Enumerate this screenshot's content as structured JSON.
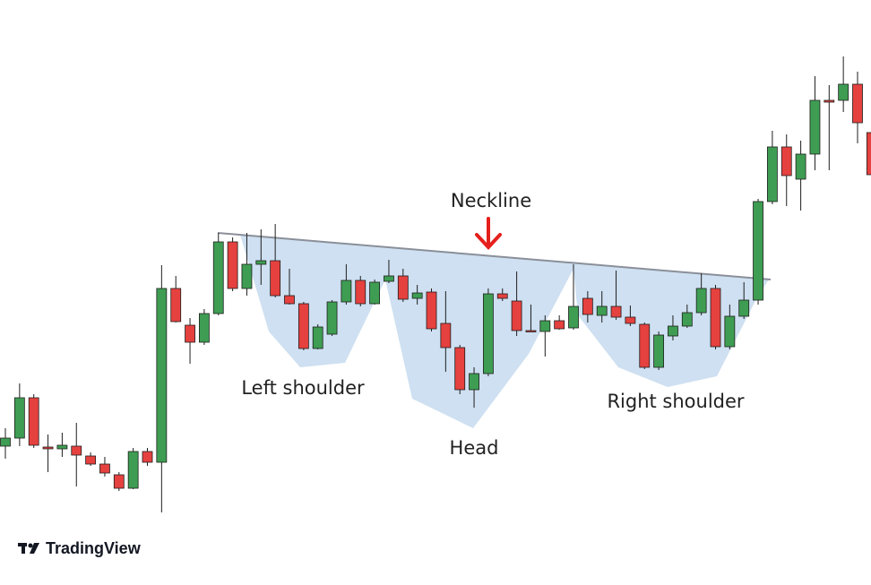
{
  "chart_data": {
    "type": "candlestick",
    "open": [
      155,
      164,
      209,
      154,
      152,
      155,
      144,
      135,
      123,
      108,
      149,
      137,
      331,
      290,
      271,
      303,
      383,
      331,
      358,
      362,
      323,
      314,
      264,
      280,
      316,
      340,
      314,
      339,
      345,
      320,
      327,
      292,
      265,
      218,
      236,
      325,
      317,
      284,
      283,
      295,
      287,
      320,
      301,
      311,
      299,
      291,
      243,
      278,
      289,
      304,
      331,
      266,
      300,
      318,
      428,
      489,
      453,
      481,
      541,
      541,
      559,
      505
    ],
    "high": [
      175,
      225,
      213,
      168,
      170,
      181,
      148,
      143,
      126,
      153,
      153,
      357,
      345,
      298,
      308,
      393,
      388,
      393,
      397,
      403,
      353,
      316,
      291,
      318,
      358,
      345,
      341,
      363,
      353,
      335,
      331,
      328,
      268,
      243,
      331,
      331,
      350,
      313,
      301,
      301,
      358,
      328,
      328,
      351,
      312,
      293,
      283,
      301,
      313,
      348,
      335,
      313,
      338,
      431,
      507,
      503,
      496,
      568,
      558,
      590,
      573,
      513
    ],
    "low": [
      141,
      155,
      153,
      126,
      143,
      110,
      133,
      121,
      105,
      107,
      133,
      81,
      293,
      247,
      268,
      301,
      328,
      323,
      335,
      321,
      313,
      262,
      263,
      278,
      313,
      311,
      313,
      337,
      316,
      313,
      283,
      238,
      213,
      198,
      233,
      317,
      278,
      283,
      255,
      285,
      285,
      293,
      293,
      296,
      289,
      241,
      240,
      273,
      287,
      301,
      263,
      263,
      297,
      313,
      425,
      423,
      418,
      463,
      463,
      528,
      493,
      443
    ],
    "close": [
      164,
      209,
      156,
      152,
      156,
      145,
      135,
      125,
      108,
      149,
      137,
      331,
      294,
      271,
      303,
      383,
      331,
      358,
      362,
      323,
      314,
      264,
      288,
      316,
      340,
      314,
      338,
      345,
      319,
      326,
      286,
      265,
      218,
      236,
      325,
      320,
      284,
      283,
      295,
      286,
      311,
      302,
      311,
      299,
      292,
      243,
      279,
      289,
      304,
      331,
      266,
      300,
      318,
      428,
      489,
      457,
      481,
      541,
      539,
      559,
      516,
      458
    ],
    "up_color": "#3e9d52",
    "down_color": "#e5413f",
    "ylim": [
      0,
      653
    ],
    "annotations": [
      "Neckline",
      "Left shoulder",
      "Head",
      "Right shoulder"
    ]
  },
  "logo": "TradingView"
}
